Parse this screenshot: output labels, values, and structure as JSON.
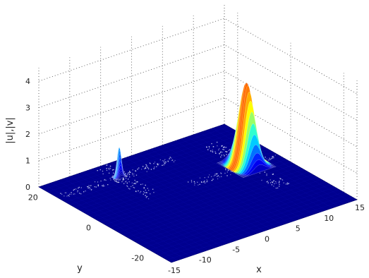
{
  "chart_data": {
    "type": "surface",
    "xlabel": "x",
    "ylabel": "y",
    "zlabel": "|u|,|v|",
    "xlim": [
      -15,
      15
    ],
    "ylim": [
      -25,
      25
    ],
    "zlim": [
      0,
      4
    ],
    "xticks": [
      "-15",
      "-10",
      "-5",
      "0",
      "5",
      "10",
      "15"
    ],
    "yticks": [
      "-20",
      "0",
      "20"
    ],
    "zticks": [
      "0",
      "1",
      "2",
      "3",
      "4"
    ],
    "grid": true,
    "colormap": "jet",
    "surface_color": "#00008f",
    "peaks": [
      {
        "x": 10,
        "y": 5,
        "height": 3.1,
        "width_x": 0.9,
        "width_y": 2.2
      },
      {
        "x": -5,
        "y": 18,
        "height": 1.1,
        "width_x": 0.3,
        "width_y": 0.4
      }
    ]
  }
}
